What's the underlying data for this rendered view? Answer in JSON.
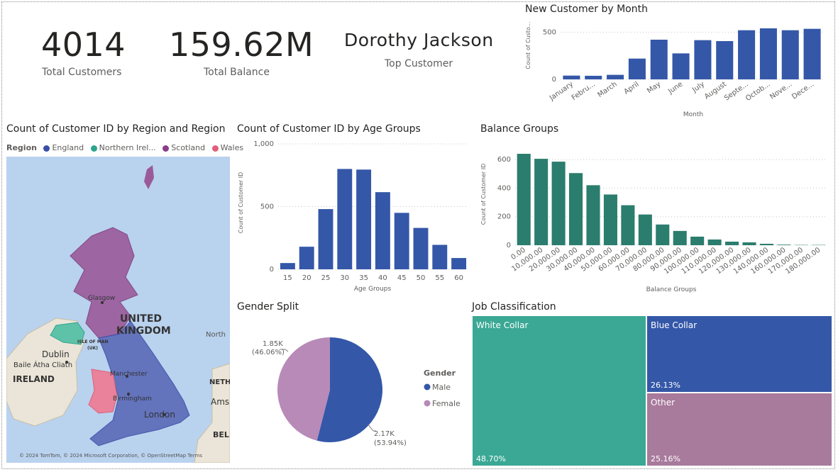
{
  "kpis": {
    "customers": {
      "value": "4014",
      "label": "Total Customers"
    },
    "balance": {
      "value": "159.62M",
      "label": "Total Balance"
    },
    "top_customer": {
      "value": "Dorothy Jackson",
      "label": "Top Customer"
    }
  },
  "map": {
    "title": "Count of Customer ID by Region and Region",
    "legend_title": "Region",
    "legend": [
      {
        "name": "England",
        "color": "#3a4ea6"
      },
      {
        "name": "Northern Irel...",
        "color": "#2da58c"
      },
      {
        "name": "Scotland",
        "color": "#8b3c8a"
      },
      {
        "name": "Wales",
        "color": "#e0607a"
      }
    ],
    "labels": {
      "uk1": "UNITED",
      "uk2": "KINGDOM",
      "ireland": "IRELAND",
      "dublin": "Dublin",
      "baile": "Baile Átha Cliath",
      "glasgow": "Glasgow",
      "manchester": "Manchester",
      "birmingham": "Birmingham",
      "london": "London",
      "isle1": "ISLE OF MAN",
      "isle2": "(UK)",
      "north": "North",
      "neth": "NETH",
      "ams": "Ams",
      "bel": "BEL",
      "copyright": "© 2024 TomTom, © 2024 Microsoft Corporation, © OpenStreetMap  Terms"
    }
  },
  "chart_data": [
    {
      "type": "bar",
      "title": "New Customer by Month",
      "xlabel": "Month",
      "ylabel": "Count of Custo...",
      "categories": [
        "January",
        "Febru...",
        "March",
        "April",
        "May",
        "June",
        "July",
        "August",
        "Septe...",
        "Octob...",
        "Nove...",
        "Dece..."
      ],
      "values": [
        40,
        38,
        48,
        220,
        420,
        275,
        415,
        405,
        520,
        540,
        520,
        535
      ],
      "ylim": [
        0,
        600
      ],
      "yticks": [
        "0",
        "500"
      ],
      "color": "#3457a8"
    },
    {
      "type": "bar",
      "title": "Count of Customer ID by Age Groups",
      "xlabel": "Age Groups",
      "ylabel": "Count of Customer ID",
      "categories": [
        "15",
        "20",
        "25",
        "30",
        "35",
        "40",
        "45",
        "50",
        "55",
        "60"
      ],
      "values": [
        50,
        180,
        480,
        800,
        795,
        615,
        450,
        330,
        195,
        90
      ],
      "ylim": [
        0,
        1000
      ],
      "yticks": [
        "0",
        "500",
        "1,000"
      ],
      "color": "#3457a8"
    },
    {
      "type": "bar",
      "title": "Balance Groups",
      "xlabel": "Balance Groups",
      "ylabel": "Count of Customer ID",
      "categories": [
        "0.00",
        "10,000.00",
        "20,000.00",
        "30,000.00",
        "40,000.00",
        "50,000.00",
        "60,000.00",
        "70,000.00",
        "80,000.00",
        "90,000.00",
        "100,000.00",
        "110,000.00",
        "120,000.00",
        "130,000.00",
        "140,000.00",
        "160,000.00",
        "170,000.00",
        "180,000.00"
      ],
      "values": [
        640,
        605,
        585,
        505,
        420,
        355,
        280,
        215,
        145,
        100,
        60,
        40,
        25,
        20,
        10,
        4,
        2,
        2
      ],
      "ylim": [
        0,
        650
      ],
      "yticks": [
        "0",
        "200",
        "400",
        "600"
      ],
      "color": "#2b7d6e"
    },
    {
      "type": "pie",
      "title": "Gender Split",
      "legend_title": "Gender",
      "slices": [
        {
          "name": "Male",
          "value": 2170,
          "percent": 53.94,
          "label": "2.17K",
          "pct_label": "(53.94%)",
          "color": "#3457a8"
        },
        {
          "name": "Female",
          "value": 1850,
          "percent": 46.06,
          "label": "1.85K",
          "pct_label": "(46.06%)",
          "color": "#b88ab8"
        }
      ]
    },
    {
      "type": "treemap",
      "title": "Job Classification",
      "items": [
        {
          "name": "White Collar",
          "percent": 48.7,
          "pct_label": "48.70%",
          "color": "#3aa894"
        },
        {
          "name": "Blue Collar",
          "percent": 26.13,
          "pct_label": "26.13%",
          "color": "#3457a8"
        },
        {
          "name": "Other",
          "percent": 25.16,
          "pct_label": "25.16%",
          "color": "#a87a9c"
        }
      ]
    }
  ]
}
